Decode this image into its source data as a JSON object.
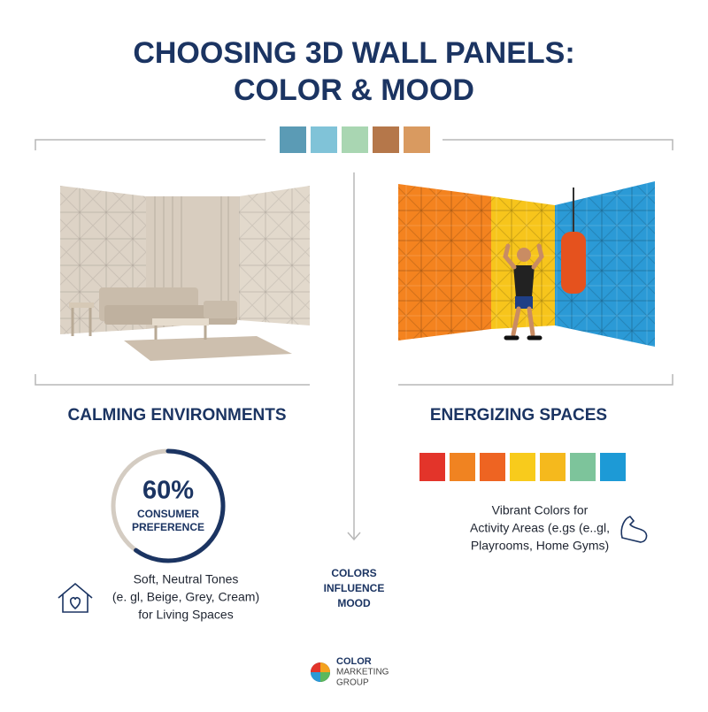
{
  "title": [
    "CHOOSING 3D WALL PANELS:",
    "COLOR & MOOD"
  ],
  "palette": [
    "#5b9bb5",
    "#80c3d8",
    "#a9d6b2",
    "#b5774a",
    "#d99a60"
  ],
  "calming": {
    "heading": "CALMING ENVIRONMENTS",
    "stat": {
      "value": 60,
      "label": "60%"
    },
    "stat_caption": [
      "CONSUMER",
      "PREFERENCE"
    ],
    "description": [
      "Soft, Neutral Tones",
      "(e. gl, Beige, Grey, Cream)",
      "for Living Spaces"
    ]
  },
  "center_note": [
    "COLORS",
    "INFLUENCE",
    "MOOD"
  ],
  "energizing": {
    "heading": "ENERGIZING SPACES",
    "palette": [
      "#e3342a",
      "#f08321",
      "#ee6422",
      "#f8cb1c",
      "#f5b91d",
      "#7dc49b",
      "#1d9ad6"
    ],
    "description": [
      "Vibrant Colors for",
      "Activity Areas (e.gs (e..gl,",
      "Playrooms, Home Gyms)"
    ]
  },
  "logo": [
    "COLOR",
    "MARKETING",
    "GROUP"
  ]
}
